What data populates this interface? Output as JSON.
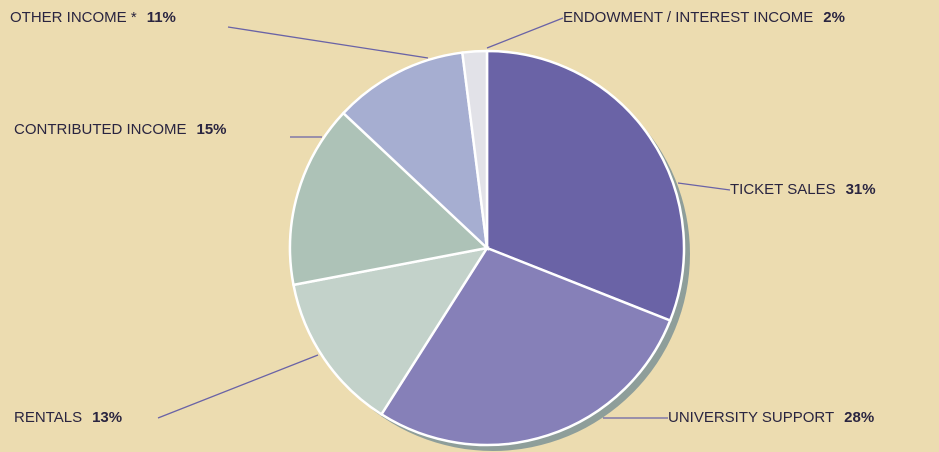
{
  "chart_data": {
    "type": "pie",
    "categories": [
      "TICKET SALES",
      "UNIVERSITY SUPPORT",
      "RENTALS",
      "CONTRIBUTED INCOME",
      "OTHER INCOME *",
      "ENDOWMENT / INTEREST INCOME"
    ],
    "values": [
      31,
      28,
      13,
      15,
      11,
      2
    ],
    "value_labels": [
      "31%",
      "28%",
      "13%",
      "15%",
      "11%",
      "2%"
    ],
    "colors": [
      "#6a63a6",
      "#8680b8",
      "#c3d2ca",
      "#adc2b7",
      "#a6aed1",
      "#e2e2e8"
    ]
  }
}
